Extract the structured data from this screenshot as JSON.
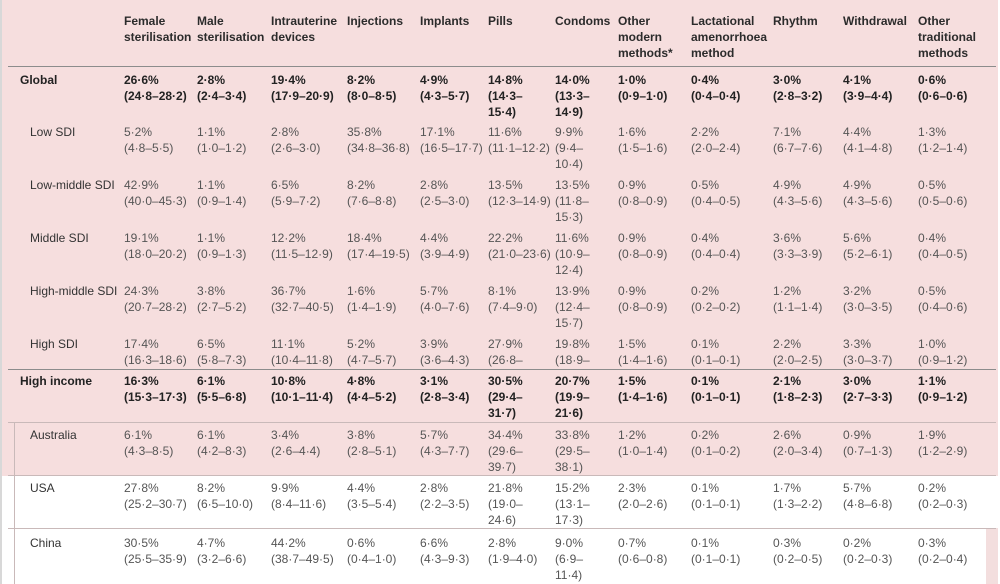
{
  "columns": [
    "Female sterilisation",
    "Male sterilisation",
    "Intrauterine devices",
    "Injections",
    "Implants",
    "Pills",
    "Condoms",
    "Other modern methods*",
    "Lactational amenorrhoea method",
    "Rhythm",
    "Withdrawal",
    "Other traditional methods"
  ],
  "column_headers": [
    [
      "Female",
      "sterilisation"
    ],
    [
      "Male",
      "sterilisation"
    ],
    [
      "Intrauterine",
      "devices"
    ],
    [
      "Injections"
    ],
    [
      "Implants"
    ],
    [
      "Pills"
    ],
    [
      "Condoms"
    ],
    [
      "Other",
      "modern",
      "methods*"
    ],
    [
      "Lactational",
      "amenorrhoea",
      "method"
    ],
    [
      "Rhythm"
    ],
    [
      "Withdrawal"
    ],
    [
      "Other",
      "traditional",
      "methods"
    ]
  ],
  "rows": [
    {
      "label": "Global",
      "bold": true,
      "cells": [
        [
          "26·6%",
          "(24·8–28·2)"
        ],
        [
          "2·8%",
          "(2·4–3·4)"
        ],
        [
          "19·4%",
          "(17·9–20·9)"
        ],
        [
          "8·2%",
          "(8·0–8·5)"
        ],
        [
          "4·9%",
          "(4·3–5·7)"
        ],
        [
          "14·8%",
          "(14·3–",
          "15·4)"
        ],
        [
          "14·0%",
          "(13·3–",
          "14·9)"
        ],
        [
          "1·0%",
          "(0·9–1·0)"
        ],
        [
          "0·4%",
          "(0·4–0·4)"
        ],
        [
          "3·0%",
          "(2·8–3·2)"
        ],
        [
          "4·1%",
          "(3·9–4·4)"
        ],
        [
          "0·6%",
          "(0·6–0·6)"
        ]
      ]
    },
    {
      "label": "Low SDI",
      "bold": false,
      "cells": [
        [
          "5·2%",
          "(4·8–5·5)"
        ],
        [
          "1·1%",
          "(1·0–1·2)"
        ],
        [
          "2·8%",
          "(2·6–3·0)"
        ],
        [
          "35·8%",
          "(34·8–36·8)"
        ],
        [
          "17·1%",
          "(16·5–17·7)"
        ],
        [
          "11·6%",
          "(11·1–12·2)"
        ],
        [
          "9·9%",
          "(9·4–",
          "10·4)"
        ],
        [
          "1·6%",
          "(1·5–1·6)"
        ],
        [
          "2·2%",
          "(2·0–2·4)"
        ],
        [
          "7·1%",
          "(6·7–7·6)"
        ],
        [
          "4·4%",
          "(4·1–4·8)"
        ],
        [
          "1·3%",
          "(1·2–1·4)"
        ]
      ]
    },
    {
      "label": "Low-middle SDI",
      "bold": false,
      "cells": [
        [
          "42·9%",
          "(40·0–45·3)"
        ],
        [
          "1·1%",
          "(0·9–1·4)"
        ],
        [
          "6·5%",
          "(5·9–7·2)"
        ],
        [
          "8·2%",
          "(7·6–8·8)"
        ],
        [
          "2·8%",
          "(2·5–3·0)"
        ],
        [
          "13·5%",
          "(12·3–14·9)"
        ],
        [
          "13·5%",
          "(11·8–",
          "15·3)"
        ],
        [
          "0·9%",
          "(0·8–0·9)"
        ],
        [
          "0·5%",
          "(0·4–0·5)"
        ],
        [
          "4·9%",
          "(4·3–5·6)"
        ],
        [
          "4·9%",
          "(4·3–5·6)"
        ],
        [
          "0·5%",
          "(0·5–0·6)"
        ]
      ]
    },
    {
      "label": "Middle SDI",
      "bold": false,
      "cells": [
        [
          "19·1%",
          "(18·0–20·2)"
        ],
        [
          "1·1%",
          "(0·9–1·3)"
        ],
        [
          "12·2%",
          "(11·5–12·9)"
        ],
        [
          "18·4%",
          "(17·4–19·5)"
        ],
        [
          "4·4%",
          "(3·9–4·9)"
        ],
        [
          "22·2%",
          "(21·0–23·6)"
        ],
        [
          "11·6%",
          "(10·9–",
          "12·4)"
        ],
        [
          "0·9%",
          "(0·8–0·9)"
        ],
        [
          "0·4%",
          "(0·4–0·4)"
        ],
        [
          "3·6%",
          "(3·3–3·9)"
        ],
        [
          "5·6%",
          "(5·2–6·1)"
        ],
        [
          "0·4%",
          "(0·4–0·5)"
        ]
      ]
    },
    {
      "label": "High-middle SDI",
      "bold": false,
      "cells": [
        [
          "24·3%",
          "(20·7–28·2)"
        ],
        [
          "3·8%",
          "(2·7–5·2)"
        ],
        [
          "36·7%",
          "(32·7–40·5)"
        ],
        [
          "1·6%",
          "(1·4–1·9)"
        ],
        [
          "5·7%",
          "(4·0–7·6)"
        ],
        [
          "8·1%",
          "(7·4–9·0)"
        ],
        [
          "13·9%",
          "(12·4–",
          "15·7)"
        ],
        [
          "0·9%",
          "(0·8–0·9)"
        ],
        [
          "0·2%",
          "(0·2–0·2)"
        ],
        [
          "1·2%",
          "(1·1–1·4)"
        ],
        [
          "3·2%",
          "(3·0–3·5)"
        ],
        [
          "0·5%",
          "(0·4–0·6)"
        ]
      ]
    },
    {
      "label": "High SDI",
      "bold": false,
      "cells": [
        [
          "17·4%",
          "(16·3–18·6)"
        ],
        [
          "6·5%",
          "(5·8–7·3)"
        ],
        [
          "11·1%",
          "(10·4–11·8)"
        ],
        [
          "5·2%",
          "(4·7–5·7)"
        ],
        [
          "3·9%",
          "(3·6–4·3)"
        ],
        [
          "27·9%",
          "(26·8–"
        ],
        [
          "19·8%",
          "(18·9–"
        ],
        [
          "1·5%",
          "(1·4–1·6)"
        ],
        [
          "0·1%",
          "(0·1–0·1)"
        ],
        [
          "2·2%",
          "(2·0–2·5)"
        ],
        [
          "3·3%",
          "(3·0–3·7)"
        ],
        [
          "1·0%",
          "(0·9–1·2)"
        ]
      ]
    },
    {
      "label": "High income",
      "bold": true,
      "cells": [
        [
          "16·3%",
          "(15·3–17·3)"
        ],
        [
          "6·1%",
          "(5·5–6·8)"
        ],
        [
          "10·8%",
          "(10·1–11·4)"
        ],
        [
          "4·8%",
          "(4·4–5·2)"
        ],
        [
          "3·1%",
          "(2·8–3·4)"
        ],
        [
          "30·5%",
          "(29·4–",
          "31·7)"
        ],
        [
          "20·7%",
          "(19·9–",
          "21·6)"
        ],
        [
          "1·5%",
          "(1·4–1·6)"
        ],
        [
          "0·1%",
          "(0·1–0·1)"
        ],
        [
          "2·1%",
          "(1·8–2·3)"
        ],
        [
          "3·0%",
          "(2·7–3·3)"
        ],
        [
          "1·1%",
          "(0·9–1·2)"
        ]
      ]
    },
    {
      "label": "Australia",
      "bold": false,
      "cells": [
        [
          "6·1%",
          "(4·3–8·5)"
        ],
        [
          "6·1%",
          "(4·2–8·3)"
        ],
        [
          "3·4%",
          "(2·6–4·4)"
        ],
        [
          "3·8%",
          "(2·8–5·1)"
        ],
        [
          "5·7%",
          "(4·3–7·7)"
        ],
        [
          "34·4%",
          "(29·6–",
          "39·7)"
        ],
        [
          "33·8%",
          "(29·5–",
          "38·1)"
        ],
        [
          "1·2%",
          "(1·0–1·4)"
        ],
        [
          "0·2%",
          "(0·1–0·2)"
        ],
        [
          "2·6%",
          "(2·0–3·4)"
        ],
        [
          "0·9%",
          "(0·7–1·3)"
        ],
        [
          "1·9%",
          "(1·2–2·9)"
        ]
      ]
    },
    {
      "label": "USA",
      "bold": false,
      "cells": [
        [
          "27·8%",
          "(25·2–30·7)"
        ],
        [
          "8·2%",
          "(6·5–10·0)"
        ],
        [
          "9·9%",
          "(8·4–11·6)"
        ],
        [
          "4·4%",
          "(3·5–5·4)"
        ],
        [
          "2·8%",
          "(2·2–3·5)"
        ],
        [
          "21·8%",
          "(19·0–",
          "24·6)"
        ],
        [
          "15·2%",
          "(13·1–",
          "17·3)"
        ],
        [
          "2·3%",
          "(2·0–2·6)"
        ],
        [
          "0·1%",
          "(0·1–0·1)"
        ],
        [
          "1·7%",
          "(1·3–2·2)"
        ],
        [
          "5·7%",
          "(4·8–6·8)"
        ],
        [
          "0·2%",
          "(0·2–0·3)"
        ]
      ]
    },
    {
      "label": "China",
      "bold": false,
      "cells": [
        [
          "30·5%",
          "(25·5–35·9)"
        ],
        [
          "4·7%",
          "(3·2–6·6)"
        ],
        [
          "44·2%",
          "(38·7–49·5)"
        ],
        [
          "0·6%",
          "(0·4–1·0)"
        ],
        [
          "6·6%",
          "(4·3–9·3)"
        ],
        [
          "2·8%",
          "(1·9–4·0)"
        ],
        [
          "9·0%",
          "(6·9–",
          "11·4)"
        ],
        [
          "0·7%",
          "(0·6–0·8)"
        ],
        [
          "0·1%",
          "(0·1–0·1)"
        ],
        [
          "0·3%",
          "(0·2–0·5)"
        ],
        [
          "0·2%",
          "(0·2–0·3)"
        ],
        [
          "0·3%",
          "(0·2–0·4)"
        ]
      ]
    }
  ]
}
